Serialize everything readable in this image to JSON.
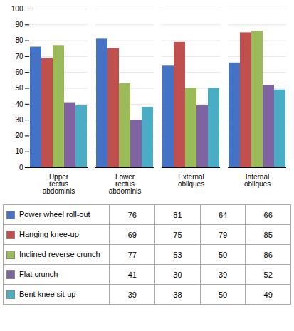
{
  "chart_data": {
    "type": "bar",
    "categories": [
      "Upper\nrectus\nabdominis",
      "Lower\nrectus\nabdominis",
      "External\nobliques",
      "Internal\nobliques"
    ],
    "series": [
      {
        "name": "Power wheel roll-out",
        "color": "#4472C4",
        "values": [
          76,
          81,
          64,
          66
        ]
      },
      {
        "name": "Hanging knee-up",
        "color": "#C0504D",
        "values": [
          69,
          75,
          79,
          85
        ]
      },
      {
        "name": "Inclined reverse crunch",
        "color": "#9BBB59",
        "values": [
          77,
          53,
          50,
          86
        ]
      },
      {
        "name": "Flat crunch",
        "color": "#8064A2",
        "values": [
          41,
          30,
          39,
          52
        ]
      },
      {
        "name": "Bent knee sit-up",
        "color": "#4BACC6",
        "values": [
          39,
          38,
          50,
          49
        ]
      }
    ],
    "ylim": [
      0,
      100
    ],
    "yticks": [
      0,
      10,
      20,
      30,
      40,
      50,
      60,
      70,
      80,
      90,
      100
    ],
    "grid": true,
    "legend": "bottom"
  }
}
